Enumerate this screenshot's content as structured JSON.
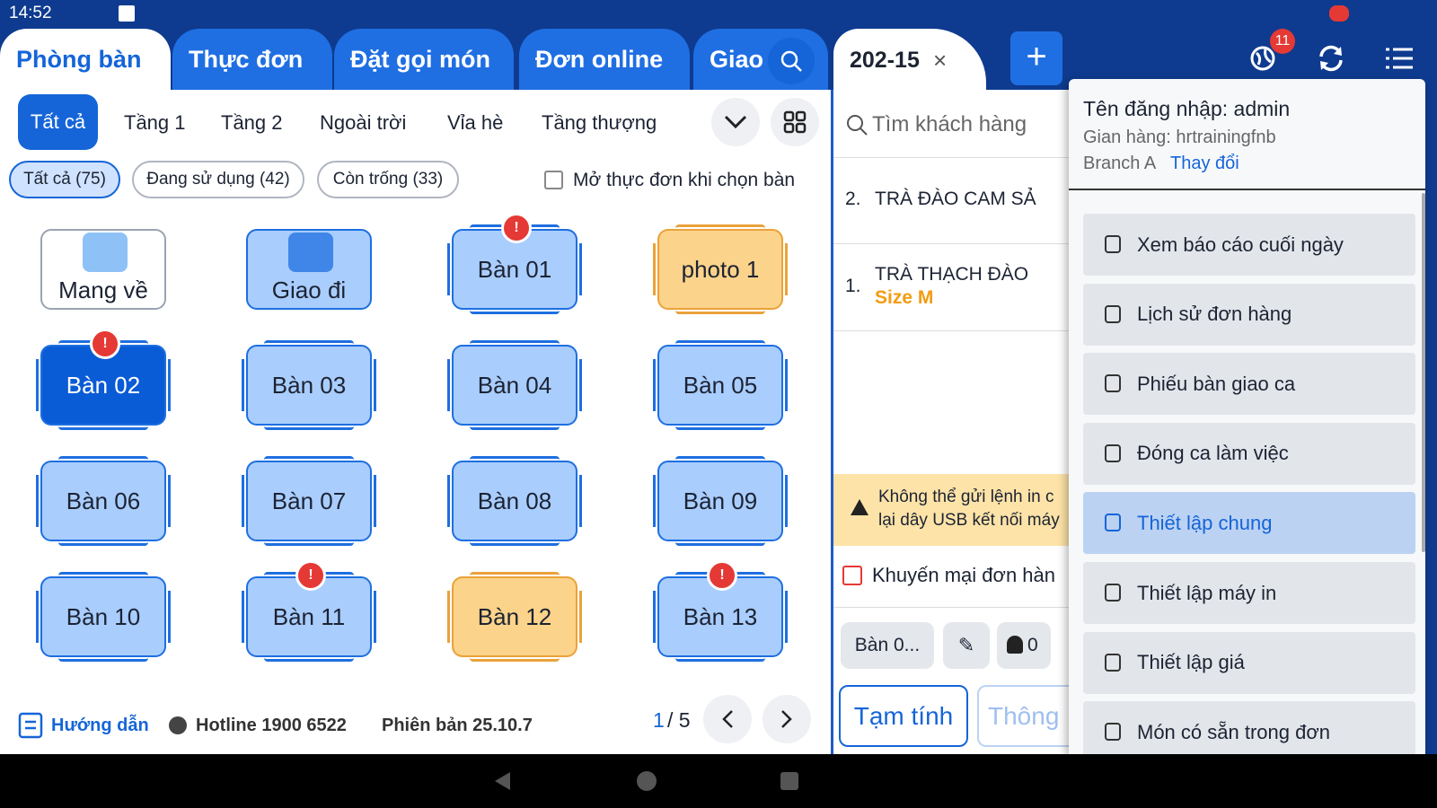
{
  "status_bar": {
    "time": "14:52"
  },
  "tabs": [
    "Phòng bàn",
    "Thực đơn",
    "Đặt gọi món",
    "Đơn online",
    "Giao"
  ],
  "floors": [
    "Tất cả",
    "Tầng 1",
    "Tầng 2",
    "Ngoài trời",
    "Vỉa hè",
    "Tầng thượng"
  ],
  "filters": [
    "Tất cả (75)",
    "Đang sử dụng (42)",
    "Còn trống (33)"
  ],
  "open_menu_option": "Mở thực đơn khi chọn bàn",
  "tables": [
    {
      "label": "Mang về",
      "color": "#ffffff",
      "alert": false
    },
    {
      "label": "Giao đi",
      "color": "#a9cdfd",
      "alert": false
    },
    {
      "label": "Bàn 01",
      "color": "#a9cdfd",
      "alert": true
    },
    {
      "label": "photo 1",
      "color": "#fcd38a",
      "alert": false
    },
    {
      "label": "Bàn 02",
      "color": "#0a5bd6",
      "alert": true
    },
    {
      "label": "Bàn 03",
      "color": "#a9cdfd",
      "alert": false
    },
    {
      "label": "Bàn 04",
      "color": "#a9cdfd",
      "alert": false
    },
    {
      "label": "Bàn 05",
      "color": "#a9cdfd",
      "alert": false
    },
    {
      "label": "Bàn 06",
      "color": "#a9cdfd",
      "alert": false
    },
    {
      "label": "Bàn 07",
      "color": "#a9cdfd",
      "alert": false
    },
    {
      "label": "Bàn 08",
      "color": "#a9cdfd",
      "alert": false
    },
    {
      "label": "Bàn 09",
      "color": "#a9cdfd",
      "alert": false
    },
    {
      "label": "Bàn 10",
      "color": "#a9cdfd",
      "alert": false
    },
    {
      "label": "Bàn 11",
      "color": "#a9cdfd",
      "alert": true
    },
    {
      "label": "Bàn 12",
      "color": "#fcd38a",
      "alert": false
    },
    {
      "label": "Bàn 13",
      "color": "#a9cdfd",
      "alert": true
    }
  ],
  "footer": {
    "guide": "Hướng dẫn",
    "hotline": "Hotline 1900 6522",
    "version": "Phiên bản 25.10.7",
    "page_current": "1",
    "page_total": "/ 5"
  },
  "order": {
    "id": "202-15",
    "search": "Tìm khách hàng",
    "items": [
      {
        "index": "2.",
        "name": "TRÀ ĐÀO CAM SẢ",
        "option": null
      },
      {
        "index": "1.",
        "name": "TRÀ THẠCH ĐÀO",
        "option": "Size M"
      }
    ],
    "warning": [
      "Không thể gửi lệnh in c",
      "lại dây USB kết nối máy"
    ],
    "promotion": "Khuyến mại đơn hàn",
    "table_button": "Bàn 0...",
    "guests": "0",
    "subtotal": "Tạm tính",
    "info": "Thông"
  },
  "notification_count": "11",
  "account_menu": {
    "username": "Tên đăng nhập: admin",
    "store": "Gian hàng: hrtrainingfnb",
    "branch": "Branch A",
    "change": "Thay đổi",
    "items": [
      "Xem báo cáo cuối ngày",
      "Lịch sử đơn hàng",
      "Phiếu bàn giao ca",
      "Đóng ca làm việc",
      "Thiết lập chung",
      "Thiết lập máy in",
      "Thiết lập giá",
      "Món có sẵn trong đơn"
    ],
    "active_item": 4
  }
}
